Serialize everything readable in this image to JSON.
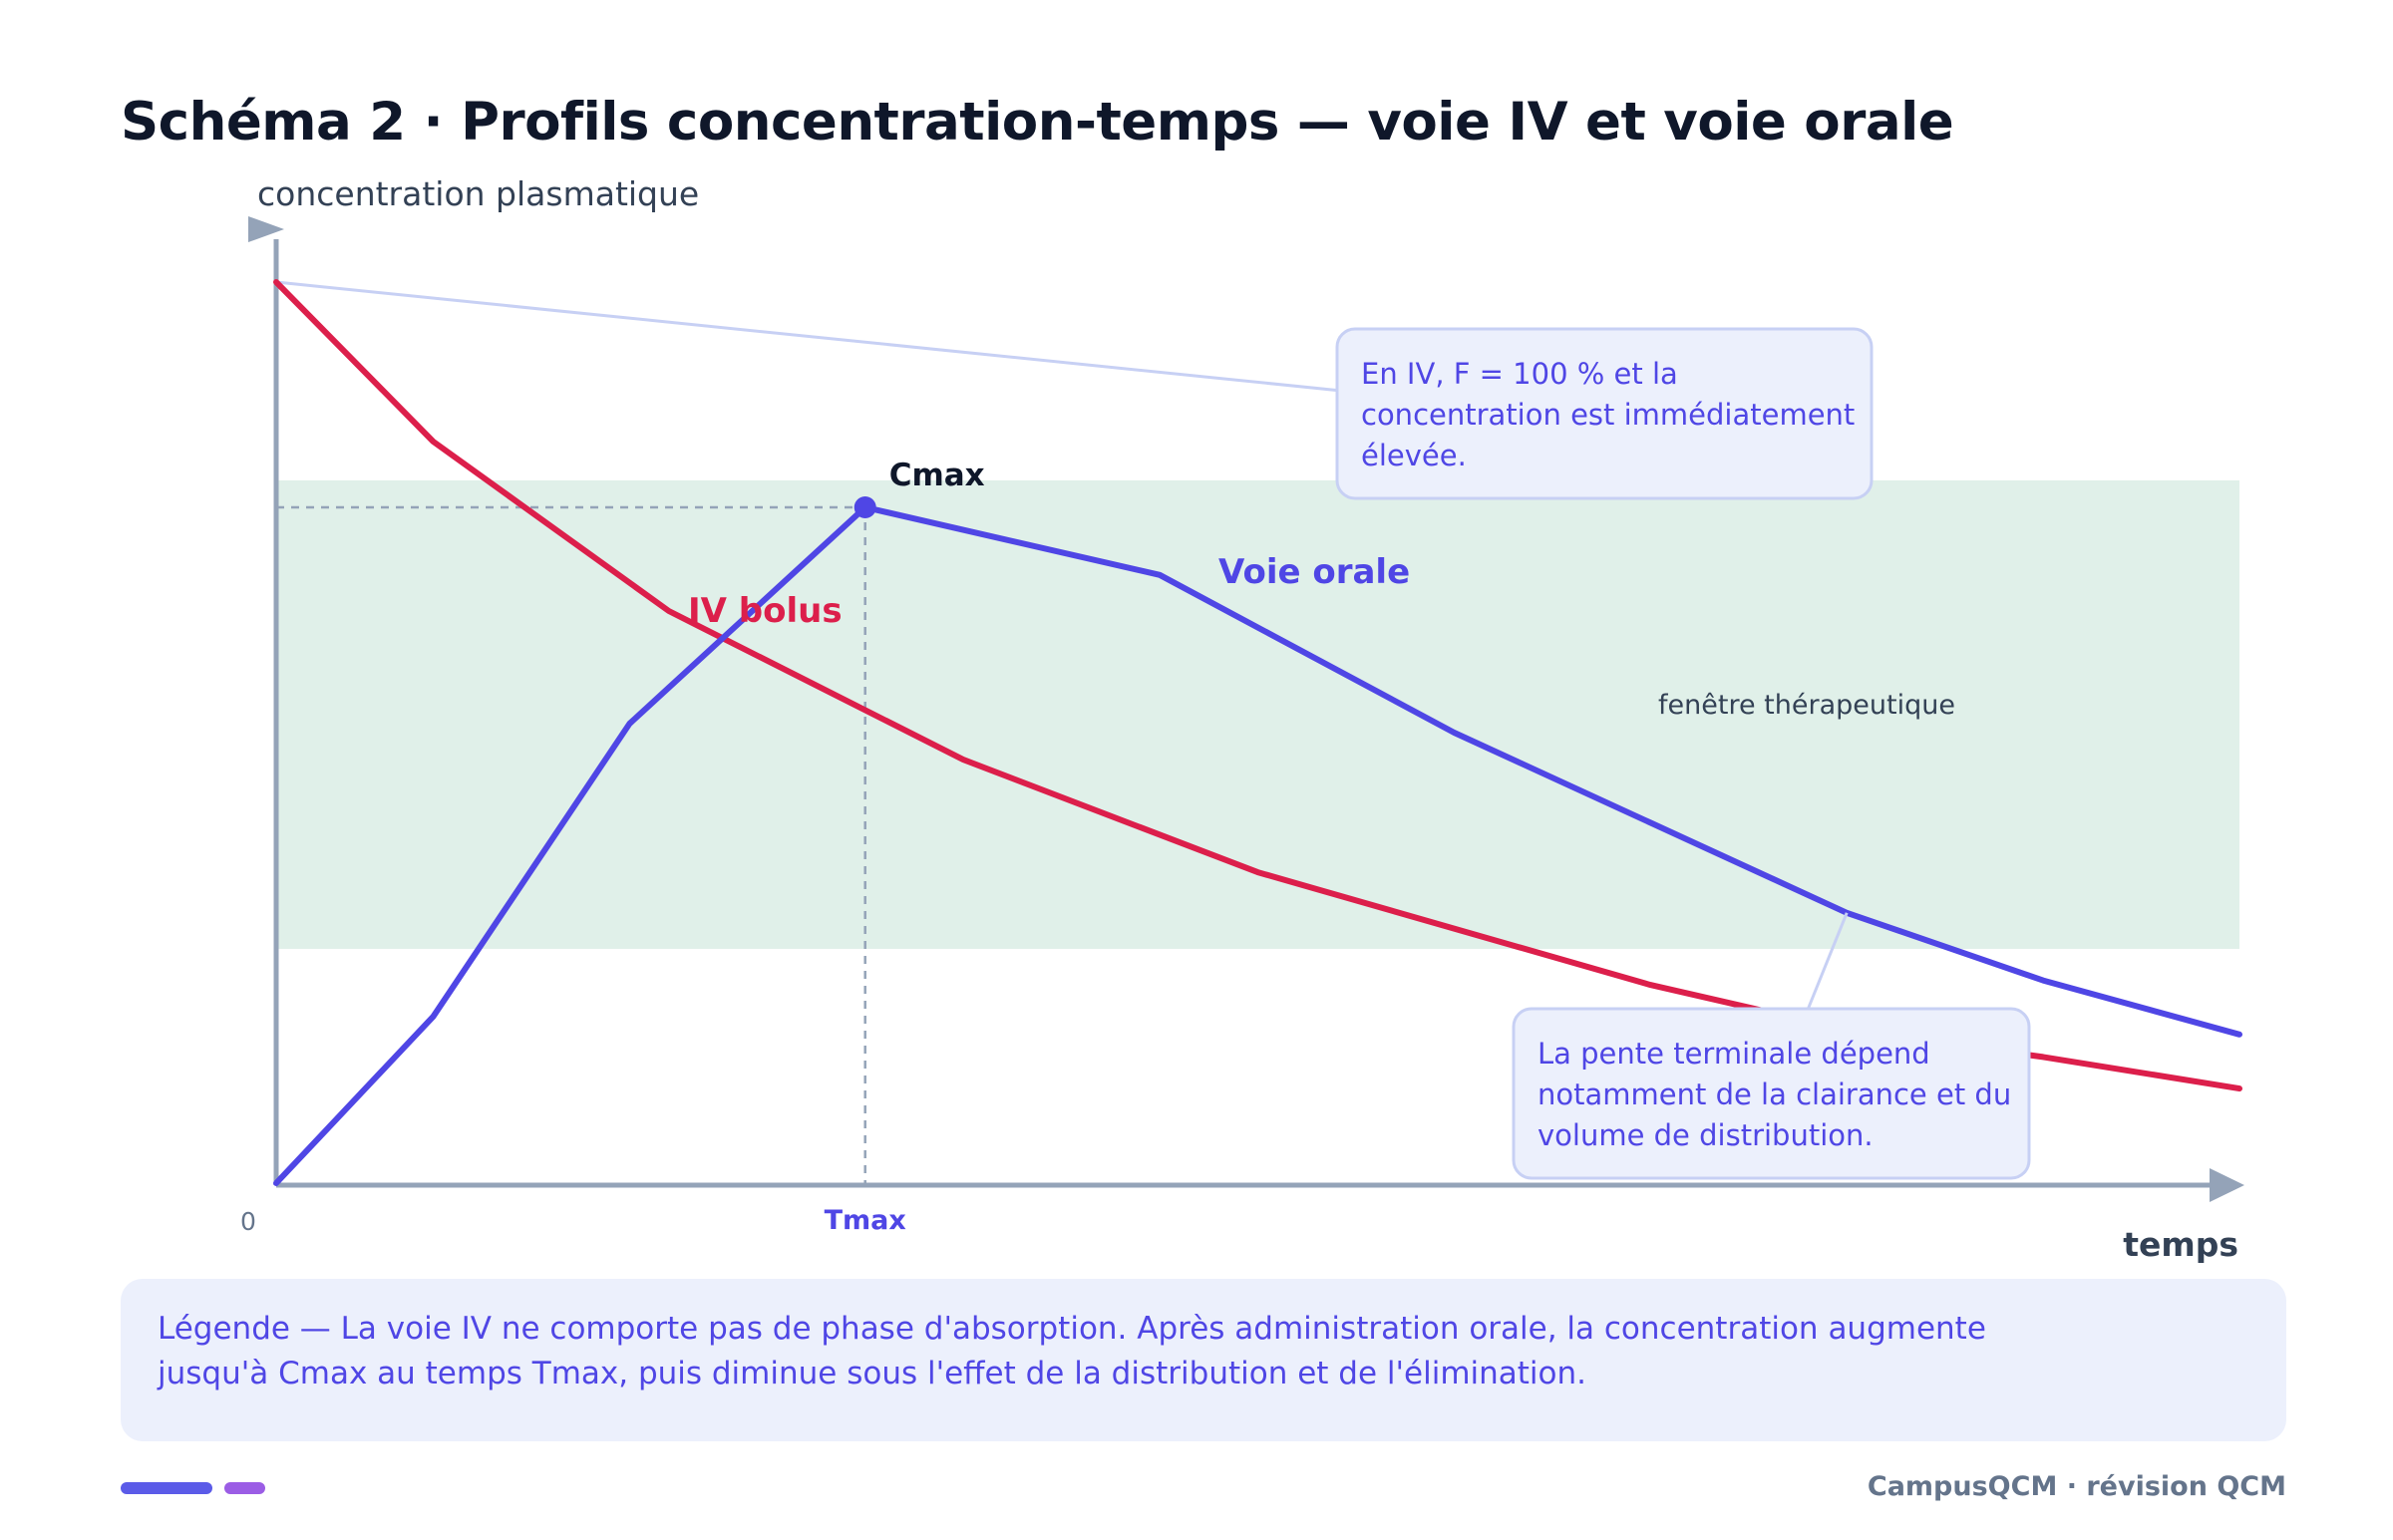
{
  "title": "Schéma 2 · Profils concentration-temps — voie IV et voie orale",
  "chart_data": {
    "type": "line",
    "ylabel": "concentration plasmatique",
    "xlabel": "temps",
    "x_origin_label": "0",
    "x_unit": "h",
    "y_unit": "%",
    "xlim": [
      0,
      10
    ],
    "ylim": [
      0,
      100
    ],
    "therapeutic_window": {
      "label": "fenêtre thérapeutique",
      "range": [
        26,
        78
      ]
    },
    "series": [
      {
        "name": "IV bolus",
        "color": "#dc1f4b",
        "x": [
          0,
          0.8,
          2,
          3.5,
          5,
          7,
          8,
          9,
          10
        ],
        "y": [
          100,
          82.3,
          63.5,
          47,
          34.5,
          22,
          17,
          14,
          10.5
        ]
      },
      {
        "name": "Voie orale",
        "color": "#4f46e5",
        "x": [
          0,
          0.8,
          1.8,
          3,
          4.5,
          6,
          7,
          8,
          9,
          10
        ],
        "y": [
          0,
          18.5,
          51,
          75,
          67.5,
          50,
          40,
          30,
          22.5,
          16.5
        ]
      }
    ],
    "cmax": {
      "label": "Cmax",
      "x": 3,
      "y": 75
    },
    "tmax": {
      "label": "Tmax",
      "x": 3
    },
    "iv_start_line": {
      "color": "#c7d0f4",
      "x": [
        0,
        5.4
      ],
      "y": [
        100,
        88
      ]
    },
    "annotations": [
      {
        "id": "iv",
        "text": "En IV, F = 100 % et la concentration est immédiatement élevée.",
        "lines": [
          "En IV, F = 100 % et la",
          "concentration est immédiatement",
          "élevée."
        ]
      },
      {
        "id": "slope",
        "text": "La pente terminale dépend notamment de la clairance et du volume de distribution.",
        "lines": [
          "La pente terminale dépend",
          "notamment de la clairance et du",
          "volume de distribution."
        ],
        "pointer": {
          "x": 8,
          "y": 30
        }
      }
    ],
    "grid": false,
    "legend": "inline labels"
  },
  "legend_text": "Légende — La voie IV ne comporte pas de phase d'absorption. Après administration orale, la concentration augmente jusqu'à Cmax au temps Tmax, puis diminue sous l'effet de la distribution et de l'élimination.",
  "footer": {
    "brand": "CampusQCM · révision QCM"
  },
  "colors": {
    "iv": "#dc1f4b",
    "oral": "#4f46e5",
    "axis": "#94a3b8",
    "window": "#e0f0e9",
    "callout_bg": "#ecf0fc",
    "callout_border": "#c7d0f4",
    "text_dark": "#0f172a"
  }
}
